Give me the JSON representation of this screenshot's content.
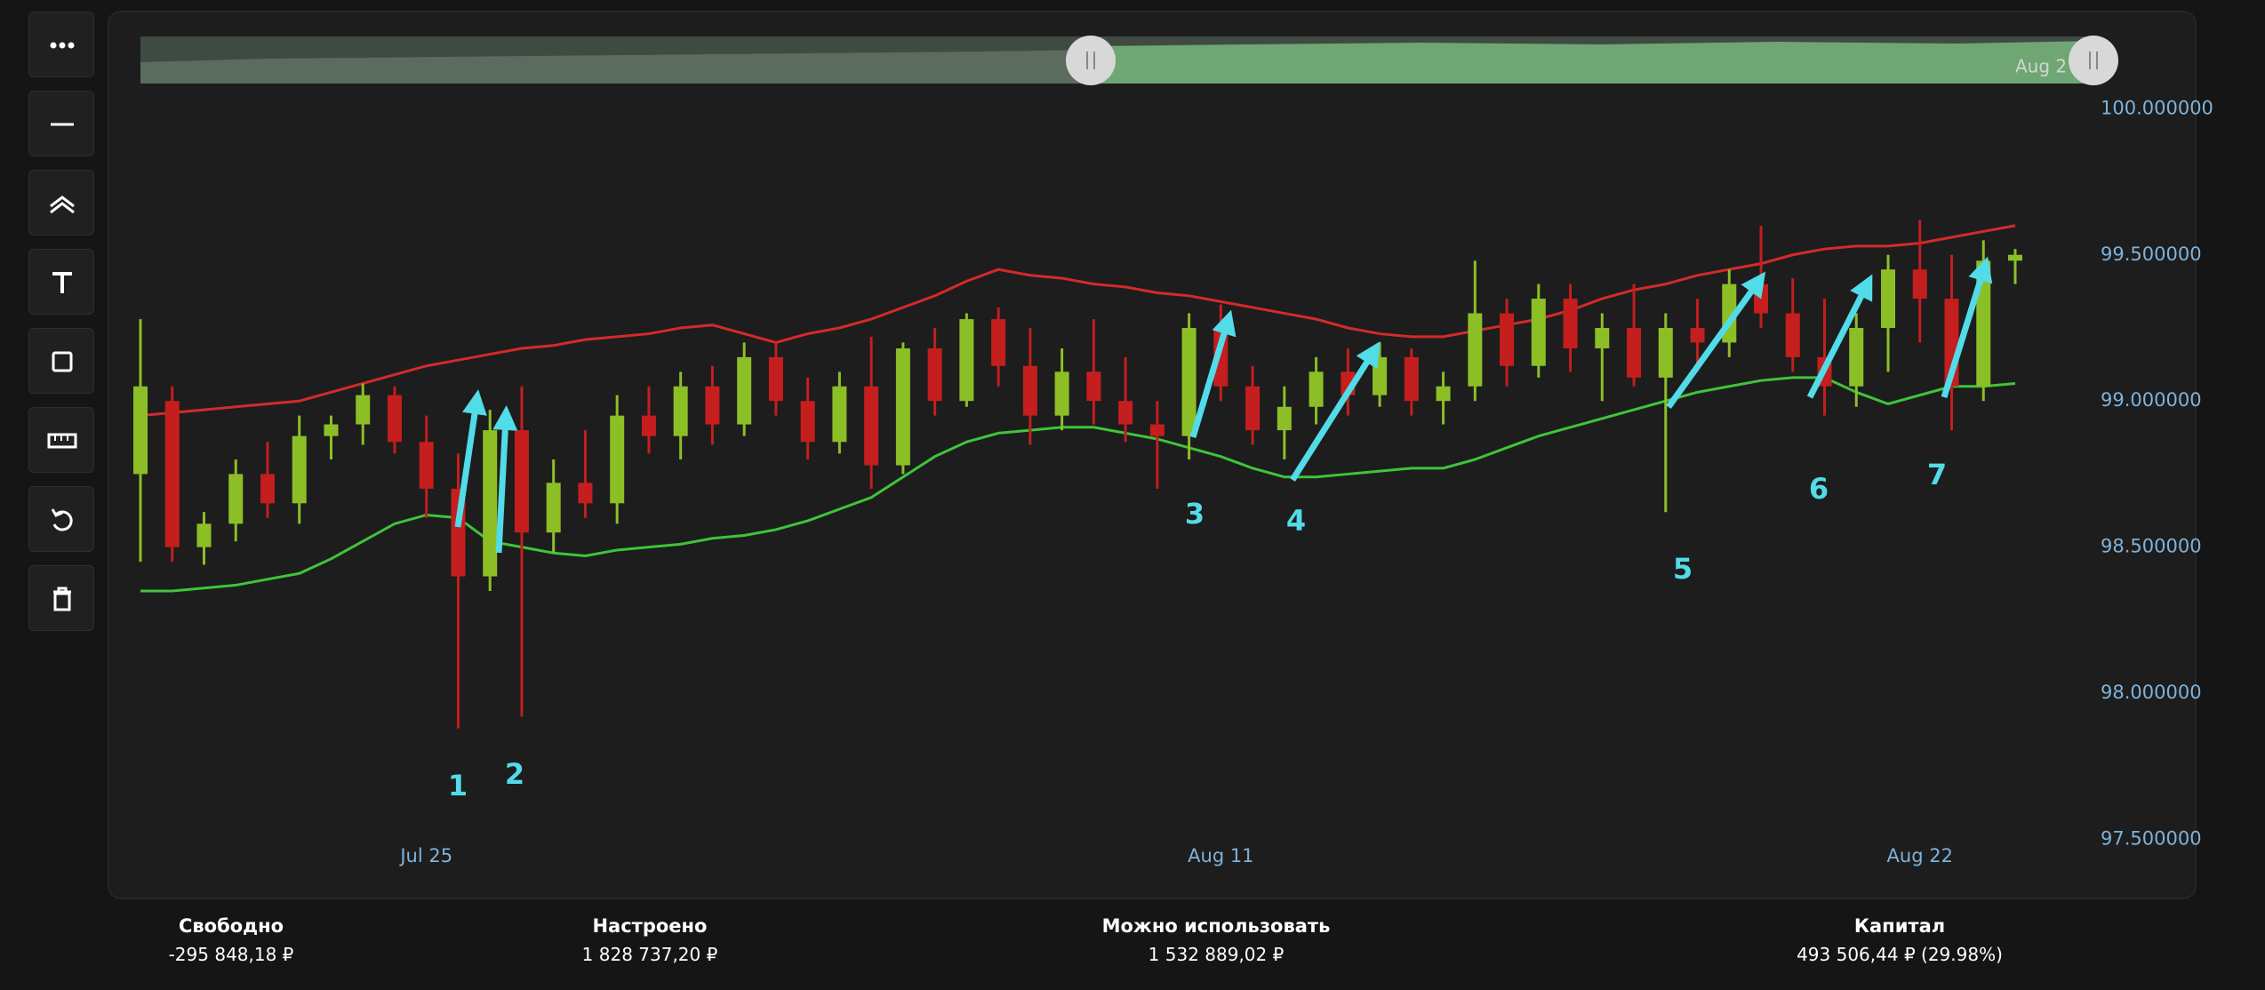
{
  "chart_data": {
    "type": "candlestick",
    "categories": [
      null,
      null,
      null,
      null,
      null,
      null,
      null,
      null,
      null,
      "Jul 25",
      null,
      null,
      null,
      null,
      null,
      null,
      null,
      null,
      null,
      null,
      null,
      null,
      null,
      null,
      null,
      null,
      null,
      null,
      null,
      null,
      null,
      null,
      null,
      null,
      "Aug 11",
      null,
      null,
      null,
      null,
      null,
      null,
      null,
      null,
      null,
      null,
      null,
      null,
      null,
      null,
      null,
      null,
      null,
      null,
      null,
      null,
      null,
      "Aug 22",
      null,
      null,
      null
    ],
    "open": [
      98.75,
      99.0,
      98.5,
      98.58,
      98.75,
      98.65,
      98.88,
      98.92,
      99.02,
      98.86,
      98.7,
      98.4,
      98.9,
      98.55,
      98.72,
      98.65,
      98.95,
      98.88,
      99.05,
      98.92,
      99.15,
      99.0,
      98.86,
      99.05,
      98.78,
      99.18,
      99.0,
      99.28,
      99.12,
      98.95,
      99.1,
      99.0,
      98.92,
      98.88,
      99.25,
      99.05,
      98.9,
      98.98,
      99.1,
      99.02,
      99.15,
      99.0,
      99.05,
      99.3,
      99.12,
      99.35,
      99.18,
      99.25,
      99.08,
      99.25,
      99.2,
      99.4,
      99.3,
      99.15,
      99.05,
      99.25,
      99.45,
      99.35,
      99.05,
      99.48
    ],
    "high": [
      99.28,
      99.05,
      98.62,
      98.8,
      98.86,
      98.95,
      98.95,
      99.06,
      99.05,
      98.95,
      98.82,
      98.97,
      99.05,
      98.8,
      98.9,
      99.02,
      99.05,
      99.1,
      99.12,
      99.2,
      99.2,
      99.08,
      99.1,
      99.22,
      99.2,
      99.25,
      99.3,
      99.32,
      99.25,
      99.18,
      99.28,
      99.15,
      99.0,
      99.3,
      99.33,
      99.12,
      99.05,
      99.15,
      99.18,
      99.2,
      99.18,
      99.1,
      99.48,
      99.35,
      99.4,
      99.4,
      99.3,
      99.4,
      99.3,
      99.35,
      99.45,
      99.6,
      99.42,
      99.35,
      99.3,
      99.5,
      99.62,
      99.5,
      99.55,
      99.52
    ],
    "low": [
      98.45,
      98.45,
      98.44,
      98.52,
      98.6,
      98.58,
      98.8,
      98.85,
      98.82,
      98.6,
      97.88,
      98.35,
      97.92,
      98.48,
      98.6,
      98.58,
      98.82,
      98.8,
      98.85,
      98.88,
      98.95,
      98.8,
      98.82,
      98.7,
      98.75,
      98.95,
      98.98,
      99.05,
      98.85,
      98.9,
      98.92,
      98.86,
      98.7,
      98.8,
      99.0,
      98.85,
      98.8,
      98.92,
      98.95,
      98.98,
      98.95,
      98.92,
      99.0,
      99.05,
      99.08,
      99.1,
      99.0,
      99.05,
      98.62,
      99.1,
      99.15,
      99.25,
      99.1,
      98.95,
      98.98,
      99.1,
      99.2,
      98.9,
      99.0,
      99.4
    ],
    "close": [
      99.05,
      98.5,
      98.58,
      98.75,
      98.65,
      98.88,
      98.92,
      99.02,
      98.86,
      98.7,
      98.4,
      98.9,
      98.55,
      98.72,
      98.65,
      98.95,
      98.88,
      99.05,
      98.92,
      99.15,
      99.0,
      98.86,
      99.05,
      98.78,
      99.18,
      99.0,
      99.28,
      99.12,
      98.95,
      99.1,
      99.0,
      98.92,
      98.88,
      99.25,
      99.05,
      98.9,
      98.98,
      99.1,
      99.02,
      99.15,
      99.0,
      99.05,
      99.3,
      99.12,
      99.35,
      99.18,
      99.25,
      99.08,
      99.25,
      99.2,
      99.4,
      99.3,
      99.15,
      99.05,
      99.25,
      99.45,
      99.35,
      99.05,
      99.48,
      99.5
    ],
    "up_color": "#8cbf26",
    "down_color": "#c41e1e",
    "upper_band": {
      "color": "#d42a2a",
      "values": [
        98.95,
        98.96,
        98.97,
        98.98,
        98.99,
        99.0,
        99.03,
        99.06,
        99.09,
        99.12,
        99.14,
        99.16,
        99.18,
        99.19,
        99.21,
        99.22,
        99.23,
        99.25,
        99.26,
        99.23,
        99.2,
        99.23,
        99.25,
        99.28,
        99.32,
        99.36,
        99.41,
        99.45,
        99.43,
        99.42,
        99.4,
        99.39,
        99.37,
        99.36,
        99.34,
        99.32,
        99.3,
        99.28,
        99.25,
        99.23,
        99.22,
        99.22,
        99.24,
        99.26,
        99.28,
        99.31,
        99.35,
        99.38,
        99.4,
        99.43,
        99.45,
        99.47,
        99.5,
        99.52,
        99.53,
        99.53,
        99.54,
        99.56,
        99.58,
        99.6
      ]
    },
    "lower_band": {
      "color": "#3fc43a",
      "values": [
        98.35,
        98.35,
        98.36,
        98.37,
        98.39,
        98.41,
        98.46,
        98.52,
        98.58,
        98.61,
        98.6,
        98.52,
        98.5,
        98.48,
        98.47,
        98.49,
        98.5,
        98.51,
        98.53,
        98.54,
        98.56,
        98.59,
        98.63,
        98.67,
        98.74,
        98.81,
        98.86,
        98.89,
        98.9,
        98.91,
        98.91,
        98.89,
        98.87,
        98.84,
        98.81,
        98.77,
        98.74,
        98.74,
        98.75,
        98.76,
        98.77,
        98.77,
        98.8,
        98.84,
        98.88,
        98.91,
        98.94,
        98.97,
        99.0,
        99.03,
        99.05,
        99.07,
        99.08,
        99.08,
        99.03,
        98.99,
        99.02,
        99.05,
        99.05,
        99.06
      ]
    },
    "ylim": [
      97.45,
      100.08
    ],
    "yticks": [
      {
        "value": 97.5,
        "label": "97.500000"
      },
      {
        "value": 98,
        "label": "98.000000"
      },
      {
        "value": 98.5,
        "label": "98.500000"
      },
      {
        "value": 99,
        "label": "99.000000"
      },
      {
        "value": 99.5,
        "label": "99.500000"
      },
      {
        "value": 100,
        "label": "100.000000"
      }
    ],
    "annotations": [
      "1",
      "2",
      "3",
      "4",
      "5",
      "6",
      "7"
    ]
  },
  "navigator": {
    "label": "Aug 2"
  },
  "footer": [
    {
      "label": "Свободно",
      "value": "-295 848,18 ₽"
    },
    {
      "label": "Настроено",
      "value": "1 828 737,20 ₽"
    },
    {
      "label": "Можно использовать",
      "value": "1 532 889,02 ₽"
    },
    {
      "label": "Капитал",
      "value": "493 506,44 ₽ (29.98%)"
    }
  ]
}
